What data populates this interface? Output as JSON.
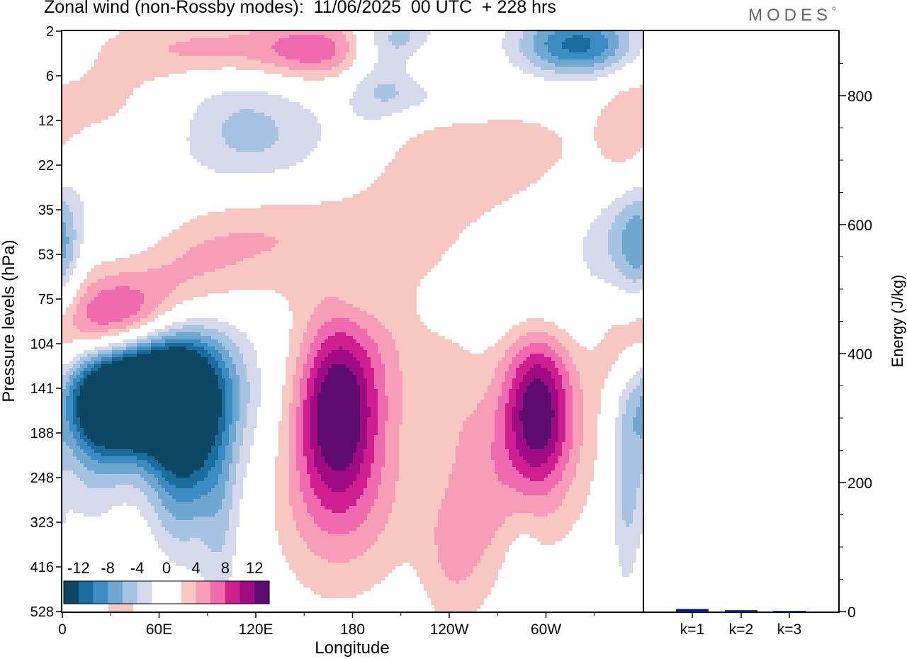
{
  "title": "Zonal wind (non-Rossby modes):  11/06/2025  00 UTC  + 228 hrs",
  "logo": "MODES",
  "chart_data": [
    {
      "type": "heatmap",
      "xlabel": "Longitude",
      "ylabel": "Pressure levels (hPa)",
      "x_ticks": [
        {
          "lon": 0,
          "label": "0"
        },
        {
          "lon": 60,
          "label": "60E"
        },
        {
          "lon": 120,
          "label": "120E"
        },
        {
          "lon": 180,
          "label": "180"
        },
        {
          "lon": 240,
          "label": "120W"
        },
        {
          "lon": 300,
          "label": "60W"
        }
      ],
      "xlim": [
        0,
        360
      ],
      "y_levels": [
        "2",
        "6",
        "12",
        "22",
        "35",
        "53",
        "75",
        "104",
        "141",
        "188",
        "248",
        "323",
        "416",
        "528"
      ],
      "colorbar": {
        "labels": [
          "-12",
          "-8",
          "-4",
          "0",
          "4",
          "8",
          "12"
        ],
        "colors": [
          "#0d4763",
          "#1a6c9c",
          "#3a8cc2",
          "#6ea7d0",
          "#a6c3e2",
          "#d6d9ec",
          "#ffffff",
          "#ffffff",
          "#f8c7c1",
          "#f79db7",
          "#ef6aae",
          "#cf1e90",
          "#9e0b83",
          "#5e0b6f"
        ]
      },
      "blobs": [
        {
          "lon": 45,
          "lev": 8.1,
          "r": [
            28,
            0.9
          ],
          "v": -15
        },
        {
          "lon": 28,
          "lev": 8.2,
          "r": [
            20,
            0.9
          ],
          "v": -10
        },
        {
          "lon": 70,
          "lev": 7.9,
          "r": [
            22,
            1.1
          ],
          "v": -9
        },
        {
          "lon": 78,
          "lev": 9.3,
          "r": [
            14,
            1.2
          ],
          "v": -6
        },
        {
          "lon": 95,
          "lev": 8.4,
          "r": [
            26,
            1.9
          ],
          "v": -4
        },
        {
          "lon": 68,
          "lev": 10.5,
          "r": [
            14,
            1.8
          ],
          "v": -3
        },
        {
          "lon": 98,
          "lev": 11.2,
          "r": [
            8,
            1.6
          ],
          "v": -3
        },
        {
          "lon": 18,
          "lev": 10.0,
          "r": [
            16,
            1.2
          ],
          "v": -3
        },
        {
          "lon": 110,
          "lev": 2.2,
          "r": [
            28,
            1.1
          ],
          "v": -3.5
        },
        {
          "lon": 140,
          "lev": 2.6,
          "r": [
            35,
            0.9
          ],
          "v": -2
        },
        {
          "lon": 195,
          "lev": 1.3,
          "r": [
            14,
            0.8
          ],
          "v": -2.5
        },
        {
          "lon": 210,
          "lev": 0.2,
          "r": [
            18,
            0.45
          ],
          "v": -6
        },
        {
          "lon": 225,
          "lev": 1.3,
          "r": [
            24,
            0.45
          ],
          "v": -6
        },
        {
          "lon": 320,
          "lev": 0.3,
          "r": [
            26,
            0.5
          ],
          "v": -11
        },
        {
          "lon": 350,
          "lev": 4.8,
          "r": [
            12,
            0.9
          ],
          "v": -5
        },
        {
          "lon": 320,
          "lev": 4.7,
          "r": [
            22,
            1.0
          ],
          "v": -2
        },
        {
          "lon": 0,
          "lev": 5.1,
          "r": [
            8,
            1.2
          ],
          "v": -4
        },
        {
          "lon": 40,
          "lev": 3.9,
          "r": [
            24,
            0.8
          ],
          "v": -2
        },
        {
          "lon": 350,
          "lev": 9.8,
          "r": [
            7,
            2.0
          ],
          "v": -5
        },
        {
          "lon": 300,
          "lev": 6.2,
          "r": [
            45,
            0.6
          ],
          "v": -2
        },
        {
          "lon": 285,
          "lev": 12.9,
          "r": [
            8,
            1.5
          ],
          "v": -2.5
        },
        {
          "lon": 235,
          "lev": 9.6,
          "r": [
            10,
            1.0
          ],
          "v": -2
        },
        {
          "lon": 185,
          "lev": 5.7,
          "r": [
            14,
            0.6
          ],
          "v": -2
        },
        {
          "lon": 42,
          "lev": 6.5,
          "r": [
            26,
            0.7
          ],
          "v": 8
        },
        {
          "lon": 20,
          "lev": 6.8,
          "r": [
            22,
            0.9
          ],
          "v": 5
        },
        {
          "lon": 80,
          "lev": 5.4,
          "r": [
            28,
            0.9
          ],
          "v": 4.5
        },
        {
          "lon": 120,
          "lev": 4.4,
          "r": [
            30,
            0.9
          ],
          "v": 3
        },
        {
          "lon": 180,
          "lev": 4.7,
          "r": [
            40,
            1.0
          ],
          "v": 2.5
        },
        {
          "lon": 170,
          "lev": 8.4,
          "r": [
            16,
            1.3
          ],
          "v": 10
        },
        {
          "lon": 170,
          "lev": 9.6,
          "r": [
            28,
            2.0
          ],
          "v": 4
        },
        {
          "lon": 195,
          "lev": 7.2,
          "r": [
            26,
            1.4
          ],
          "v": 3
        },
        {
          "lon": 240,
          "lev": 9.7,
          "r": [
            12,
            2.4
          ],
          "v": 2.5
        },
        {
          "lon": 295,
          "lev": 8.5,
          "r": [
            14,
            1.2
          ],
          "v": 10
        },
        {
          "lon": 300,
          "lev": 8.9,
          "r": [
            26,
            1.9
          ],
          "v": 4
        },
        {
          "lon": 265,
          "lev": 10.0,
          "r": [
            18,
            1.7
          ],
          "v": 3
        },
        {
          "lon": 350,
          "lev": 7.2,
          "r": [
            12,
            1.3
          ],
          "v": 4
        },
        {
          "lon": 230,
          "lev": 3.0,
          "r": [
            30,
            1.1
          ],
          "v": 3
        },
        {
          "lon": 290,
          "lev": 2.8,
          "r": [
            35,
            0.9
          ],
          "v": 2.5
        },
        {
          "lon": 350,
          "lev": 2.5,
          "r": [
            12,
            0.9
          ],
          "v": 2.5
        },
        {
          "lon": 20,
          "lev": 1.6,
          "r": [
            30,
            0.7
          ],
          "v": 2.5
        },
        {
          "lon": 100,
          "lev": 0.4,
          "r": [
            55,
            0.5
          ],
          "v": 5
        },
        {
          "lon": 160,
          "lev": 0.4,
          "r": [
            25,
            0.5
          ],
          "v": 5
        },
        {
          "lon": 230,
          "lev": 0.9,
          "r": [
            18,
            0.5
          ],
          "v": 5
        },
        {
          "lon": 40,
          "lev": 12.6,
          "r": [
            25,
            1.1
          ],
          "v": 2.5
        },
        {
          "lon": 175,
          "lev": 10.5,
          "r": [
            35,
            1.4
          ],
          "v": 2.8
        },
        {
          "lon": 245,
          "lev": 11.6,
          "r": [
            16,
            1.3
          ],
          "v": 2.2
        }
      ]
    },
    {
      "type": "bar",
      "categories": [
        "k=1",
        "k=2",
        "k=3"
      ],
      "values": [
        4,
        2,
        1
      ],
      "ylabel": "Energy (J/kg)",
      "ylim": [
        0,
        900
      ],
      "y_ticks": [
        0,
        200,
        400,
        600,
        800
      ],
      "bar_color": "#0a1a8c"
    }
  ]
}
